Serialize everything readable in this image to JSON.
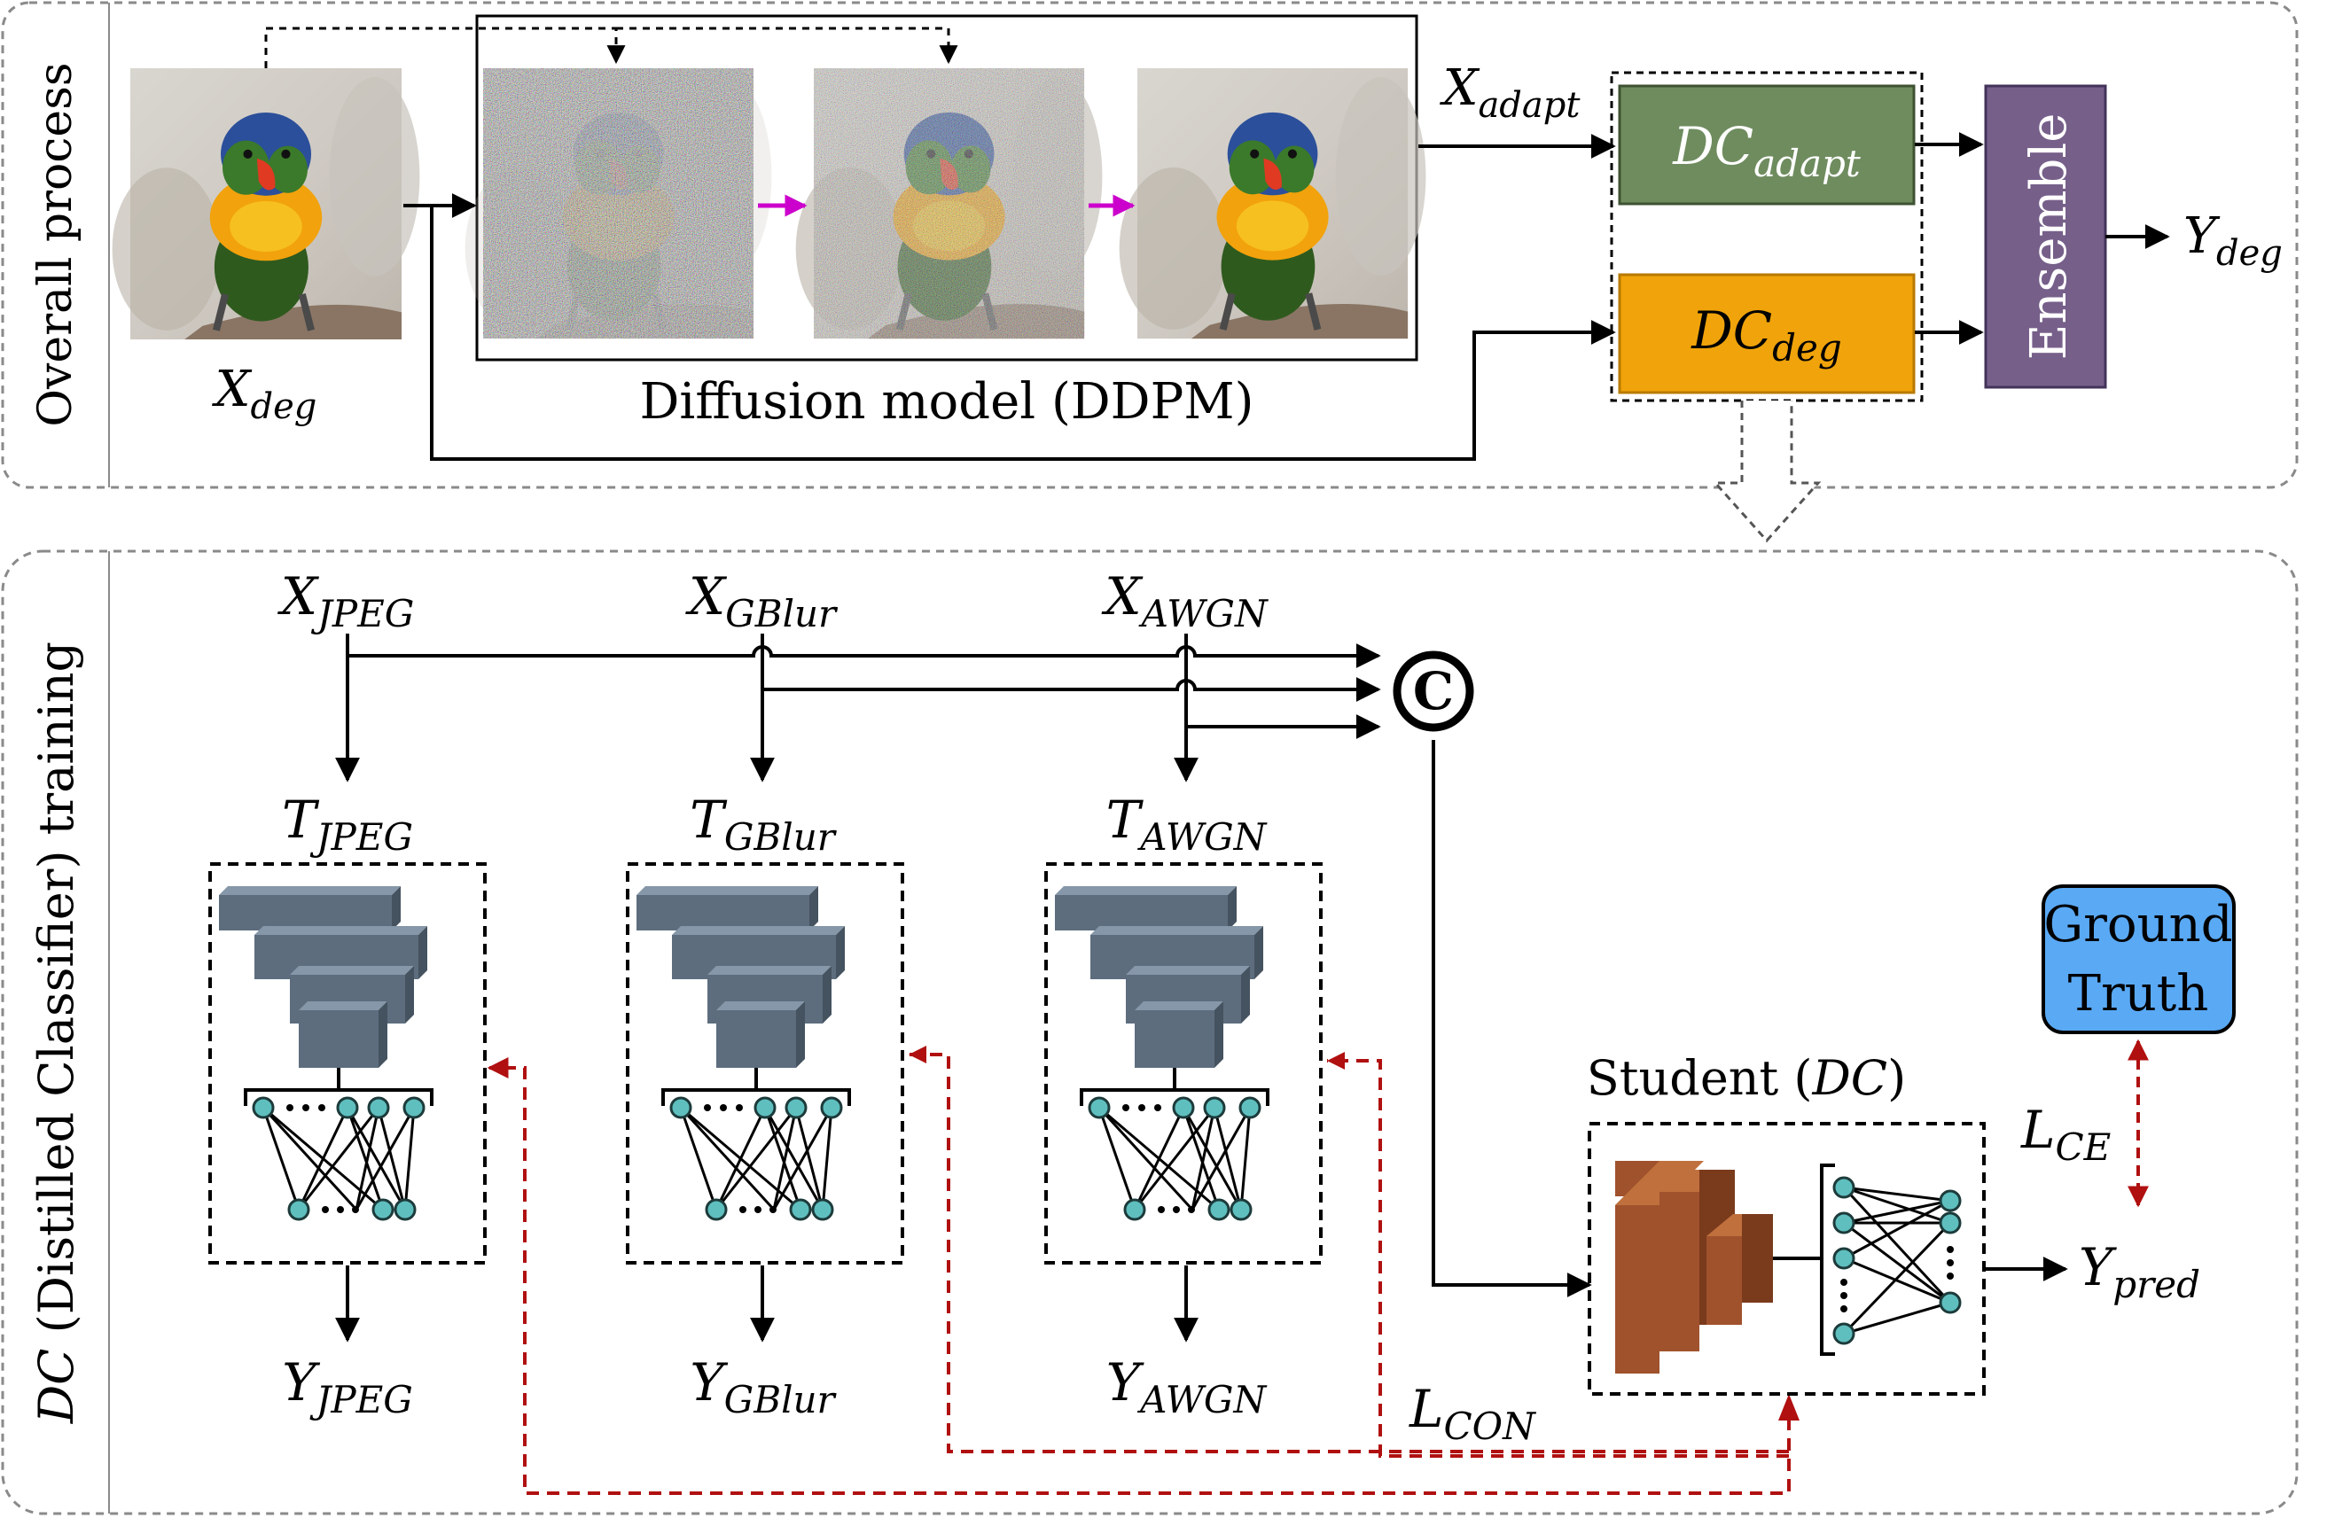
{
  "overall": {
    "panel_label": "Overall process",
    "x_deg": {
      "base": "X",
      "sub": "deg"
    },
    "x_adapt": {
      "base": "X",
      "sub": "adapt"
    },
    "diffusion_label": "Diffusion model (DDPM)",
    "dc_adapt": {
      "base": "DC",
      "sub": "adapt"
    },
    "dc_deg": {
      "base": "DC",
      "sub": "deg"
    },
    "ensemble": "Ensemble",
    "y_deg": {
      "base": "Y",
      "sub": "deg"
    }
  },
  "training": {
    "panel_label_prefix": "DC",
    "panel_label_rest": " (Distilled Classifier) training",
    "inputs": [
      {
        "base": "X",
        "sub": "JPEG"
      },
      {
        "base": "X",
        "sub": "GBlur"
      },
      {
        "base": "X",
        "sub": "AWGN"
      }
    ],
    "teachers": [
      {
        "base": "T",
        "sub": "JPEG"
      },
      {
        "base": "T",
        "sub": "GBlur"
      },
      {
        "base": "T",
        "sub": "AWGN"
      }
    ],
    "outputs": [
      {
        "base": "Y",
        "sub": "JPEG"
      },
      {
        "base": "Y",
        "sub": "GBlur"
      },
      {
        "base": "Y",
        "sub": "AWGN"
      }
    ],
    "concat_symbol": "C",
    "student_prefix": "Student (",
    "student_dc": "DC",
    "student_suffix": ")",
    "ground_truth_line1": "Ground",
    "ground_truth_line2": "Truth",
    "l_ce": {
      "base": "L",
      "sub": "CE"
    },
    "l_con": {
      "base": "L",
      "sub": "CON"
    },
    "y_pred": {
      "base": "Y",
      "sub": "pred"
    }
  },
  "colors": {
    "dc_adapt": "#6f8c5f",
    "dc_deg": "#f0a30a",
    "ensemble": "#76608a",
    "teacher_block": "#5d6d7e",
    "student_block": "#a0522d",
    "neuron": "#5fbfbf",
    "ground_truth": "#5aa9f5",
    "loss_arrow": "#b01010",
    "flow_arrow": "#cc00cc"
  }
}
